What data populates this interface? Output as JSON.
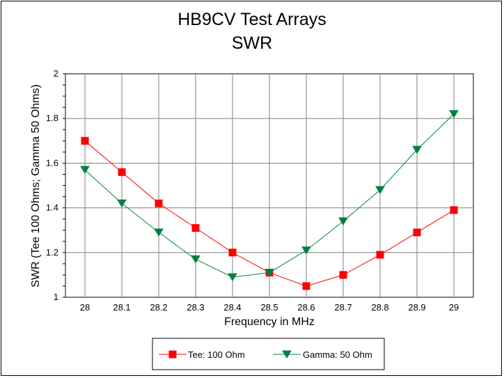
{
  "chart_data": {
    "type": "line",
    "title": [
      "HB9CV Test Arrays",
      "SWR"
    ],
    "xlabel": "Frequency in MHz",
    "ylabel": "SWR (Tee 100 Ohms; Gamma 50 Ohms)",
    "x": [
      "28",
      "28.1",
      "28.2",
      "28.3",
      "28.4",
      "28.5",
      "28.6",
      "28.7",
      "28.8",
      "28.9",
      "29"
    ],
    "xlim": [
      28,
      29
    ],
    "ylim": [
      1,
      2
    ],
    "yticks": [
      "1",
      "1.2",
      "1.4",
      "1.6",
      "1.8",
      "2"
    ],
    "grid": true,
    "legend_position": "bottom",
    "series": [
      {
        "name": "Tee: 100 Ohm",
        "color": "#ff0000",
        "marker": "square",
        "values": [
          1.7,
          1.56,
          1.42,
          1.31,
          1.2,
          1.11,
          1.05,
          1.1,
          1.19,
          1.29,
          1.39
        ]
      },
      {
        "name": "Gamma: 50 Ohm",
        "color": "#008040",
        "marker": "triangle-down",
        "values": [
          1.57,
          1.42,
          1.29,
          1.17,
          1.09,
          1.11,
          1.21,
          1.34,
          1.48,
          1.66,
          1.82
        ]
      }
    ]
  }
}
